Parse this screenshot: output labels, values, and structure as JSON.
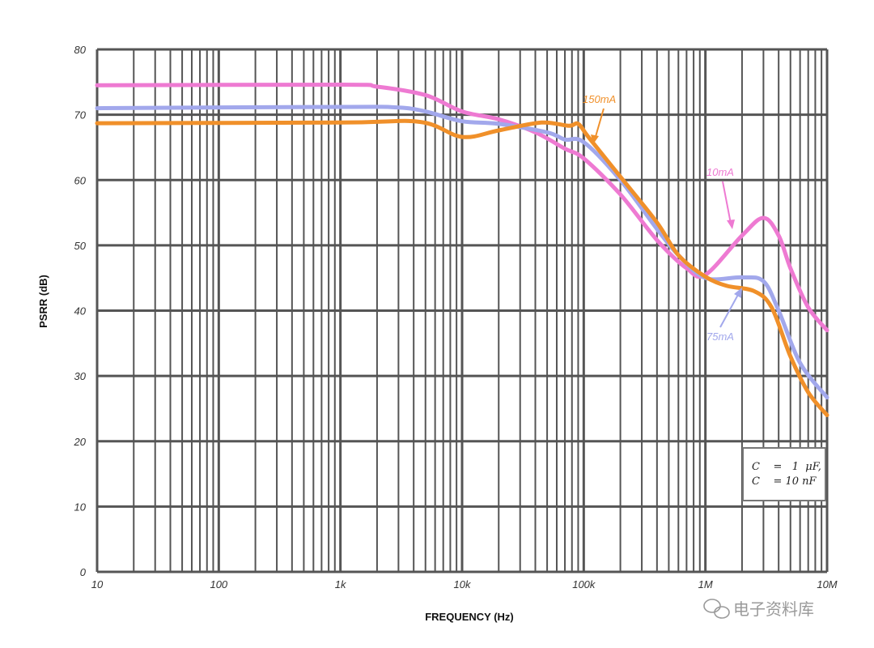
{
  "chart_data": {
    "type": "line",
    "xlabel": "FREQUENCY (Hz)",
    "ylabel": "PSRR (dB)",
    "x_scale": "log",
    "xlim": [
      10,
      10000000
    ],
    "ylim": [
      0,
      80
    ],
    "x_ticks": [
      {
        "value": 10,
        "label": "10"
      },
      {
        "value": 100,
        "label": "100"
      },
      {
        "value": 1000,
        "label": "1k"
      },
      {
        "value": 10000,
        "label": "10k"
      },
      {
        "value": 100000,
        "label": "100k"
      },
      {
        "value": 1000000,
        "label": "1M"
      },
      {
        "value": 10000000,
        "label": "10M"
      }
    ],
    "y_ticks": [
      "0",
      "10",
      "20",
      "30",
      "40",
      "50",
      "60",
      "70",
      "80"
    ],
    "grid": true,
    "series": [
      {
        "name": "10mA",
        "color": "#ee7ad2",
        "points": [
          [
            10,
            74.5
          ],
          [
            1000,
            74.6
          ],
          [
            2000,
            74.3
          ],
          [
            5000,
            73.0
          ],
          [
            10000,
            70.5
          ],
          [
            20000,
            69.3
          ],
          [
            40000,
            67.3
          ],
          [
            70000,
            64.8
          ],
          [
            100000,
            63.3
          ],
          [
            200000,
            57.8
          ],
          [
            400000,
            50.8
          ],
          [
            700000,
            46.5
          ],
          [
            1000000,
            45.5
          ],
          [
            2000000,
            51.5
          ],
          [
            3000000,
            54.2
          ],
          [
            4000000,
            51.5
          ],
          [
            5000000,
            46.5
          ],
          [
            7000000,
            40.5
          ],
          [
            10000000,
            37.0
          ]
        ]
      },
      {
        "name": "75mA",
        "color": "#a2a8ec",
        "points": [
          [
            10,
            71.0
          ],
          [
            1000,
            71.2
          ],
          [
            3000,
            71.1
          ],
          [
            5000,
            70.5
          ],
          [
            10000,
            69.0
          ],
          [
            20000,
            68.6
          ],
          [
            50000,
            67.3
          ],
          [
            70000,
            66.2
          ],
          [
            100000,
            65.8
          ],
          [
            200000,
            60.0
          ],
          [
            400000,
            52.5
          ],
          [
            600000,
            48.5
          ],
          [
            1000000,
            45.0
          ],
          [
            2000000,
            45.1
          ],
          [
            3000000,
            44.5
          ],
          [
            4000000,
            40.0
          ],
          [
            6000000,
            32.0
          ],
          [
            10000000,
            26.7
          ]
        ]
      },
      {
        "name": "150mA",
        "color": "#f0902a",
        "points": [
          [
            10,
            68.7
          ],
          [
            1000,
            68.8
          ],
          [
            4500,
            68.9
          ],
          [
            10000,
            66.6
          ],
          [
            20000,
            67.6
          ],
          [
            45000,
            68.8
          ],
          [
            75000,
            68.3
          ],
          [
            90000,
            68.6
          ],
          [
            110000,
            66.5
          ],
          [
            200000,
            60.5
          ],
          [
            400000,
            53.5
          ],
          [
            600000,
            48.5
          ],
          [
            1000000,
            45.2
          ],
          [
            1500000,
            43.8
          ],
          [
            2500000,
            43.0
          ],
          [
            3500000,
            40.5
          ],
          [
            5000000,
            33.0
          ],
          [
            7000000,
            27.5
          ],
          [
            10000000,
            24.0
          ]
        ]
      }
    ],
    "annotations": [
      {
        "text": "150mA",
        "color": "#f0902a"
      },
      {
        "text": "10mA",
        "color": "#ee7ad2"
      },
      {
        "text": "75mA",
        "color": "#a2a8ec"
      }
    ],
    "legend_box": {
      "line1": "C    =   1  μF,",
      "line2": "C    = 10 nF"
    }
  },
  "watermark": "电子资料库"
}
